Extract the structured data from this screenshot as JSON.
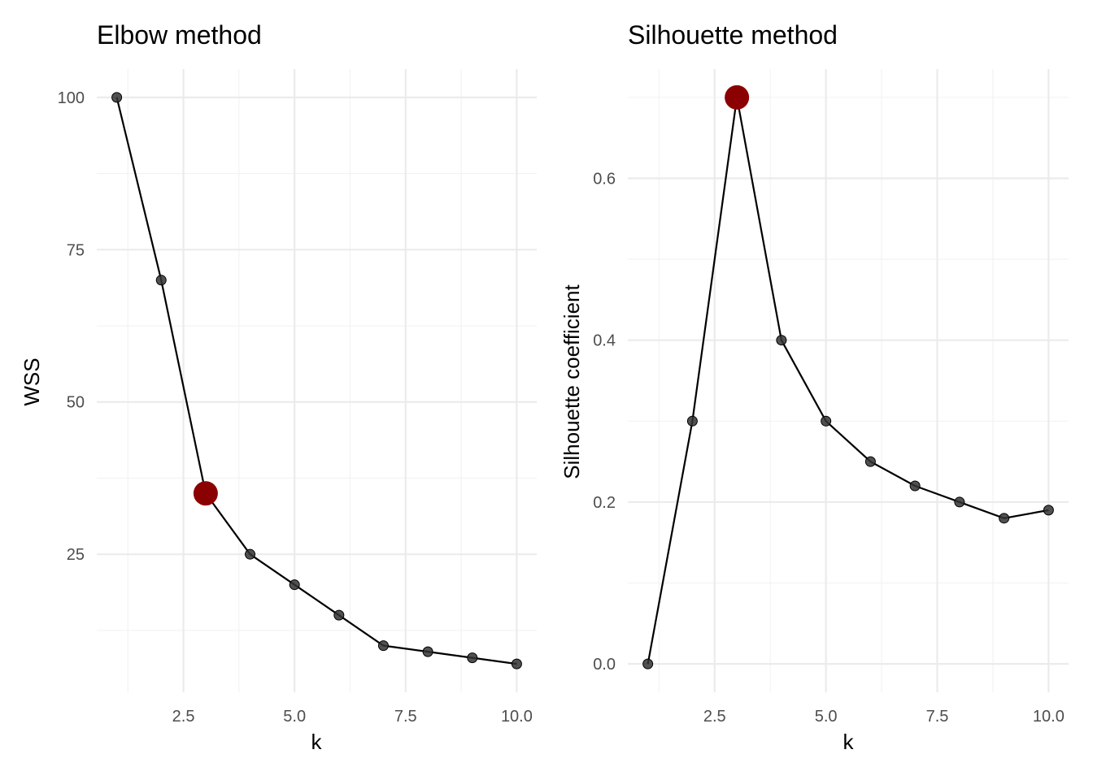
{
  "chart_data": [
    {
      "type": "line",
      "title": "Elbow method",
      "xlabel": "k",
      "ylabel": "WSS",
      "x": [
        1,
        2,
        3,
        4,
        5,
        6,
        7,
        8,
        9,
        10
      ],
      "series": [
        {
          "values": [
            100,
            70,
            35,
            25,
            20,
            15,
            10,
            9,
            8,
            7
          ]
        }
      ],
      "highlight": {
        "x": 3,
        "y": 35,
        "color": "#8b0000"
      },
      "xlim": [
        0.55,
        10.45
      ],
      "ylim": [
        2.35,
        104.65
      ],
      "xticks": [
        2.5,
        5.0,
        7.5,
        10.0
      ],
      "xtick_labels": [
        "2.5",
        "5.0",
        "7.5",
        "10.0"
      ],
      "yticks": [
        25,
        50,
        75,
        100
      ],
      "ytick_labels": [
        "25",
        "50",
        "75",
        "100"
      ],
      "grid": true,
      "legend": "none"
    },
    {
      "type": "line",
      "title": "Silhouette method",
      "xlabel": "k",
      "ylabel": "Silhouette coefficient",
      "x": [
        1,
        2,
        3,
        4,
        5,
        6,
        7,
        8,
        9,
        10
      ],
      "series": [
        {
          "values": [
            0.0,
            0.3,
            0.7,
            0.4,
            0.3,
            0.25,
            0.22,
            0.2,
            0.18,
            0.19
          ]
        }
      ],
      "highlight": {
        "x": 3,
        "y": 0.7,
        "color": "#8b0000"
      },
      "xlim": [
        0.55,
        10.45
      ],
      "ylim": [
        -0.035,
        0.735
      ],
      "xticks": [
        2.5,
        5.0,
        7.5,
        10.0
      ],
      "xtick_labels": [
        "2.5",
        "5.0",
        "7.5",
        "10.0"
      ],
      "yticks": [
        0.0,
        0.2,
        0.4,
        0.6
      ],
      "ytick_labels": [
        "0.0",
        "0.2",
        "0.4",
        "0.6"
      ],
      "grid": true,
      "legend": "none"
    }
  ]
}
